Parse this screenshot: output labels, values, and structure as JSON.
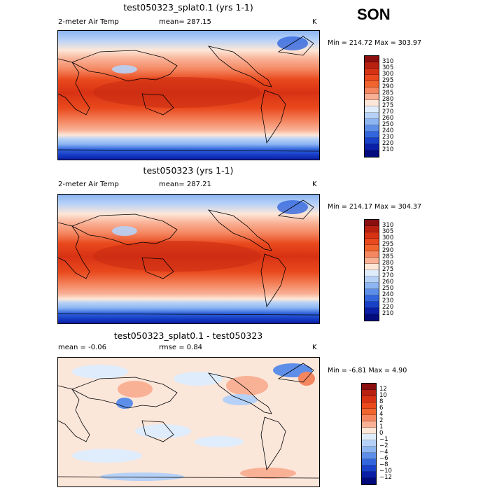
{
  "season": "SON",
  "panels": [
    {
      "title": "test050323_splat0.1 (yrs 1-1)",
      "left_label": "2-meter Air Temp",
      "stat_label": "mean= 287.15",
      "unit": "K",
      "minmax": "Min = 214.72 Max = 303.97",
      "colorbar": {
        "labels": [
          "310",
          "305",
          "300",
          "295",
          "290",
          "285",
          "280",
          "275",
          "270",
          "260",
          "250",
          "240",
          "230",
          "220",
          "210"
        ],
        "colors": [
          "#8b0f0f",
          "#b82010",
          "#d83214",
          "#e9491d",
          "#f0642e",
          "#f48660",
          "#f9b196",
          "#fde7d8",
          "#dfecfb",
          "#b6d1f7",
          "#8cb5f2",
          "#5d8ee8",
          "#3366dd",
          "#1840c8",
          "#0a1ea6",
          "#020a7c"
        ]
      },
      "map_description": "global 2-meter air temperature field"
    },
    {
      "title": "test050323 (yrs 1-1)",
      "left_label": "2-meter Air Temp",
      "stat_label": "mean= 287.21",
      "unit": "K",
      "minmax": "Min = 214.17 Max = 304.37",
      "colorbar": {
        "labels": [
          "310",
          "305",
          "300",
          "295",
          "290",
          "285",
          "280",
          "275",
          "270",
          "260",
          "250",
          "240",
          "230",
          "220",
          "210"
        ],
        "colors": [
          "#8b0f0f",
          "#b82010",
          "#d83214",
          "#e9491d",
          "#f0642e",
          "#f48660",
          "#f9b196",
          "#fde7d8",
          "#dfecfb",
          "#b6d1f7",
          "#8cb5f2",
          "#5d8ee8",
          "#3366dd",
          "#1840c8",
          "#0a1ea6",
          "#020a7c"
        ]
      },
      "map_description": "global 2-meter air temperature field"
    },
    {
      "title": "test050323_splat0.1 - test050323",
      "left_label": "mean =   -0.06",
      "stat_label": "rmse =    0.84",
      "unit": "K",
      "minmax": "Min =  -6.81 Max =    4.90",
      "colorbar": {
        "labels": [
          "12",
          "10",
          "8",
          "6",
          "4",
          "2",
          "1",
          "0",
          "−1",
          "−2",
          "−4",
          "−6",
          "−8",
          "−10",
          "−12"
        ],
        "colors": [
          "#8b0f0f",
          "#b82010",
          "#d83214",
          "#e9491d",
          "#f0642e",
          "#f48660",
          "#f9b196",
          "#fde7d8",
          "#dfecfb",
          "#b6d1f7",
          "#8cb5f2",
          "#5d8ee8",
          "#3366dd",
          "#1840c8",
          "#0a1ea6",
          "#020a7c"
        ]
      },
      "map_description": "difference field"
    }
  ]
}
